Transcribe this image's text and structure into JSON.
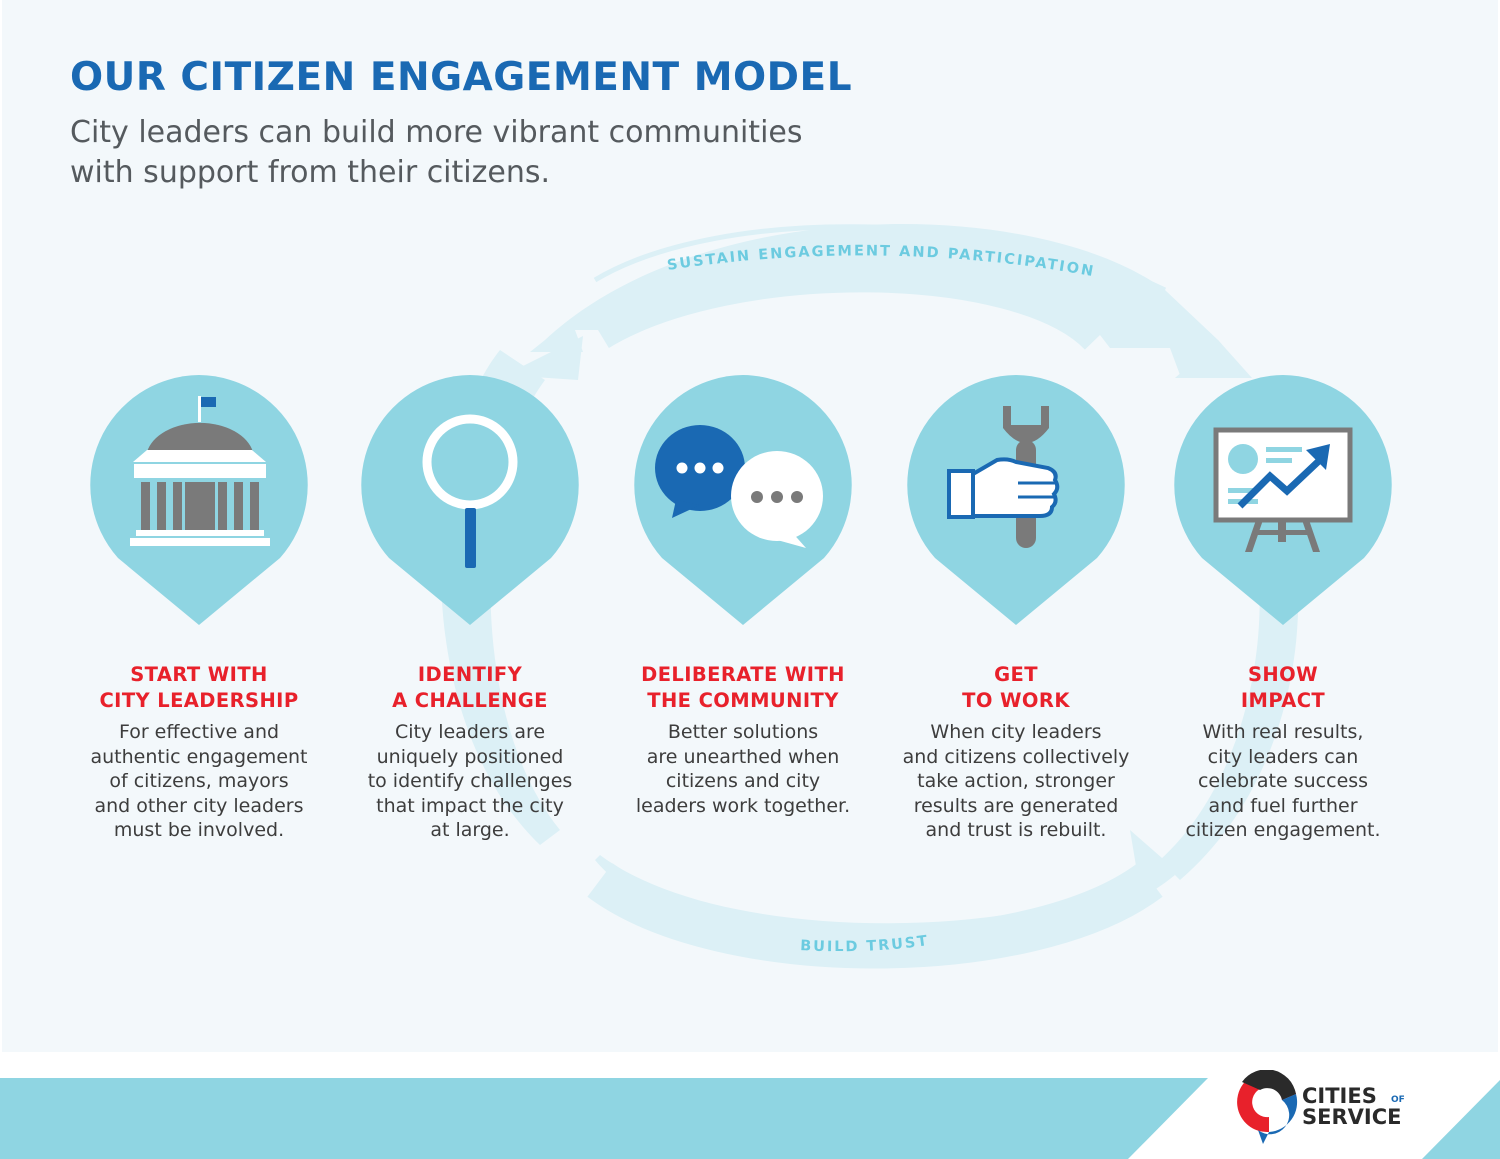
{
  "header": {
    "title": "OUR CITIZEN ENGAGEMENT MODEL",
    "subtitle": "City leaders can build more vibrant communities\nwith support from their citizens."
  },
  "cycle": {
    "top_label": "SUSTAIN ENGAGEMENT AND PARTICIPATION",
    "bottom_label": "BUILD TRUST"
  },
  "steps": [
    {
      "icon": "city-hall-icon",
      "title": "START WITH\nCITY LEADERSHIP",
      "description": "For effective and\nauthentic engagement\nof citizens, mayors\nand other city leaders\nmust be involved."
    },
    {
      "icon": "magnifying-glass-icon",
      "title": "IDENTIFY\nA CHALLENGE",
      "description": "City leaders are\nuniquely positioned\nto identify challenges\nthat impact the city\nat large."
    },
    {
      "icon": "chat-bubbles-icon",
      "title": "DELIBERATE WITH\nTHE COMMUNITY",
      "description": "Better solutions\nare unearthed when\ncitizens and city\nleaders work together."
    },
    {
      "icon": "hand-wrench-icon",
      "title": "GET\nTO WORK",
      "description": "When city leaders\nand citizens collectively\ntake action, stronger\nresults are generated\nand trust is rebuilt."
    },
    {
      "icon": "presentation-chart-icon",
      "title": "SHOW\nIMPACT",
      "description": "With real results,\ncity leaders can\ncelebrate success\nand fuel further\ncitizen engagement."
    }
  ],
  "logo": {
    "word1": "CITIES",
    "word2": "OF",
    "word3": "SERVICE"
  },
  "colors": {
    "title_blue": "#1a69b3",
    "step_red": "#e8212b",
    "pin_fill": "#8fd5e2",
    "cycle_fill": "#dcf0f6",
    "cycle_text": "#6ccbe0",
    "icon_gray": "#7a7a7a"
  }
}
